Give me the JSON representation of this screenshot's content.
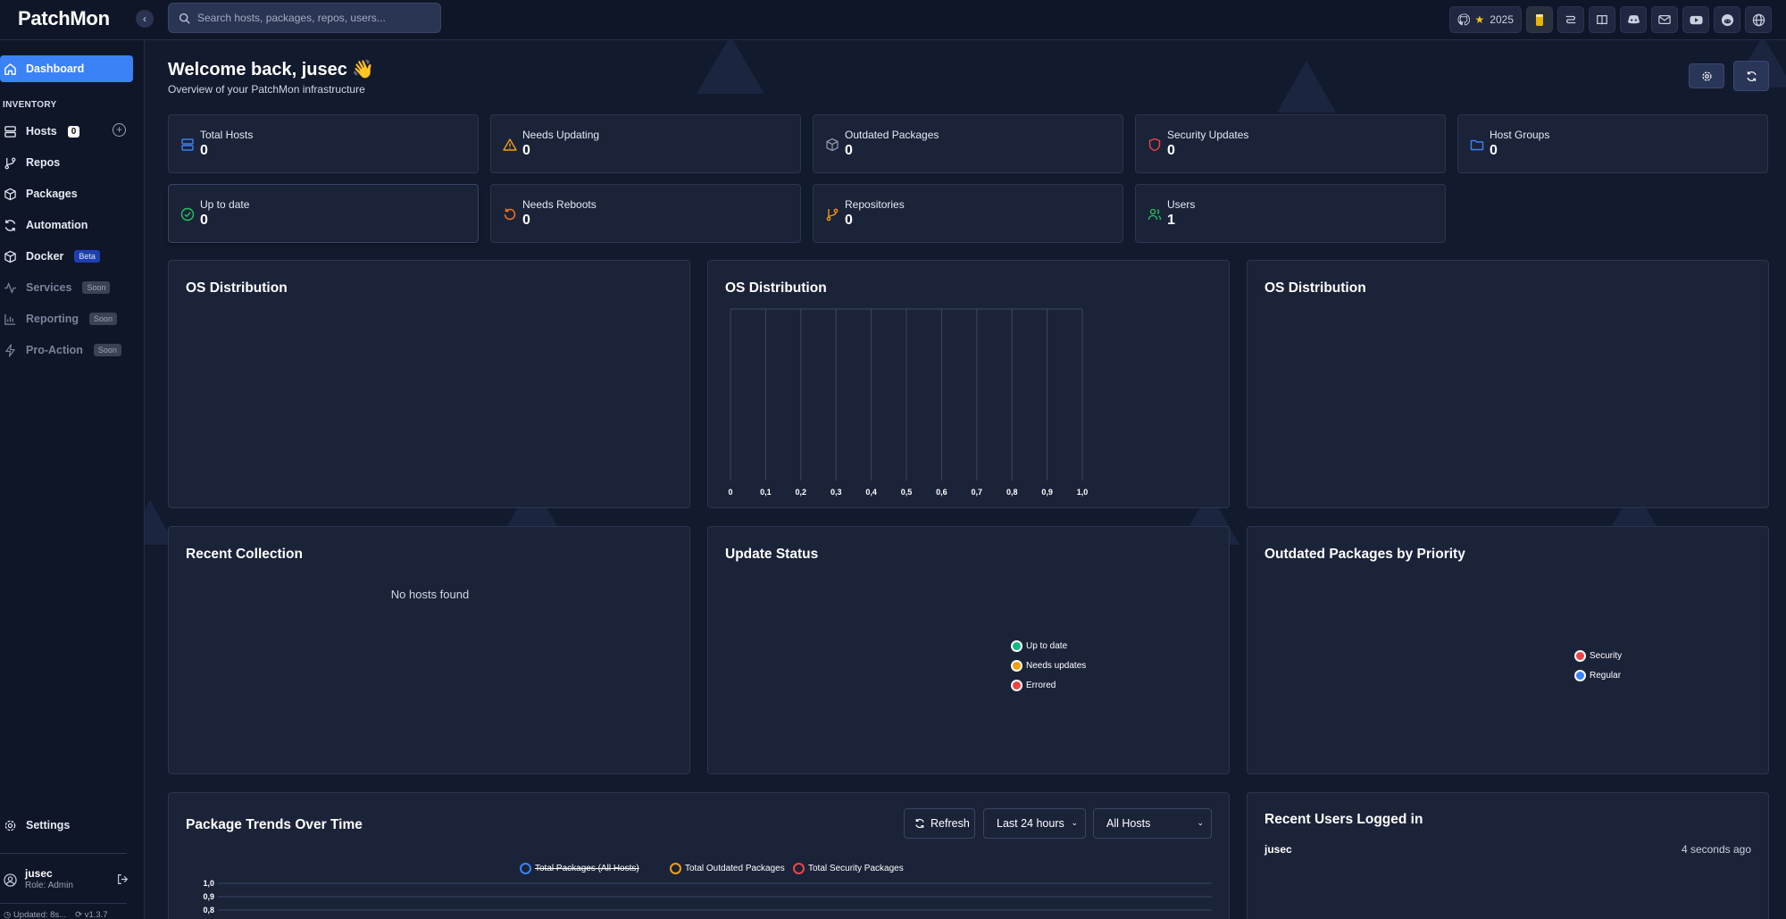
{
  "app": {
    "logo": "PatchMon",
    "search_placeholder": "Search hosts, packages, repos, users...",
    "github_stars": "2025",
    "accent": "#3b82f6"
  },
  "top_icons": [
    "github-icon",
    "beer-icon",
    "roadmap-icon",
    "docs-icon",
    "discord-icon",
    "mail-icon",
    "youtube-icon",
    "reddit-icon",
    "globe-icon"
  ],
  "sidebar": {
    "dashboard": "Dashboard",
    "section": "INVENTORY",
    "hosts": "Hosts",
    "hosts_count": "0",
    "repos": "Repos",
    "packages": "Packages",
    "automation": "Automation",
    "docker": "Docker",
    "docker_badge": "Beta",
    "services": "Services",
    "reporting": "Reporting",
    "pro_action": "Pro-Action",
    "soon": "Soon",
    "settings": "Settings",
    "user_name": "jusec",
    "user_role": "Role: Admin",
    "updated": "Updated: 8s...",
    "version": "v1.3.7"
  },
  "header": {
    "welcome": "Welcome back, jusec",
    "wave": "👋",
    "subtitle": "Overview of your PatchMon infrastructure"
  },
  "stats": [
    {
      "label": "Total Hosts",
      "value": "0",
      "icon": "server-icon",
      "color": "#3b82f6"
    },
    {
      "label": "Needs Updating",
      "value": "0",
      "icon": "warning-icon",
      "color": "#f59e0b"
    },
    {
      "label": "Outdated Packages",
      "value": "0",
      "icon": "package-icon",
      "color": "#8b93a8"
    },
    {
      "label": "Security Updates",
      "value": "0",
      "icon": "shield-icon",
      "color": "#ef4444"
    },
    {
      "label": "Host Groups",
      "value": "0",
      "icon": "folder-icon",
      "color": "#3b82f6"
    },
    {
      "label": "Up to date",
      "value": "0",
      "icon": "check-circle-icon",
      "color": "#22c55e"
    },
    {
      "label": "Needs Reboots",
      "value": "0",
      "icon": "reboot-icon",
      "color": "#f97316"
    },
    {
      "label": "Repositories",
      "value": "0",
      "icon": "git-branch-icon",
      "color": "#f59e0b"
    },
    {
      "label": "Users",
      "value": "1",
      "icon": "users-icon",
      "color": "#22c55e"
    }
  ],
  "panels": {
    "os_dist_1": "OS Distribution",
    "os_dist_2": "OS Distribution",
    "os_dist_3": "OS Distribution",
    "recent_collection": "Recent Collection",
    "no_hosts": "No hosts found",
    "update_status": "Update Status",
    "outdated_priority": "Outdated Packages by Priority",
    "package_trends": "Package Trends Over Time",
    "recent_users": "Recent Users Logged in"
  },
  "update_status_legend": [
    {
      "label": "Up to date",
      "color": "#10b981"
    },
    {
      "label": "Needs updates",
      "color": "#f59e0b"
    },
    {
      "label": "Errored",
      "color": "#ef4444"
    }
  ],
  "priority_legend": [
    {
      "label": "Security",
      "color": "#ef4444"
    },
    {
      "label": "Regular",
      "color": "#3b82f6"
    }
  ],
  "trends": {
    "refresh": "Refresh",
    "range": "Last 24 hours",
    "range_options": [
      "Last 24 hours"
    ],
    "hosts": "All Hosts",
    "hosts_options": [
      "All Hosts"
    ],
    "legend": [
      {
        "label": "Total Packages (All Hosts)",
        "color": "#3b82f6",
        "struck": true
      },
      {
        "label": "Total Outdated Packages",
        "color": "#f59e0b",
        "struck": false
      },
      {
        "label": "Total Security Packages",
        "color": "#ef4444",
        "struck": false
      }
    ]
  },
  "recent_users": [
    {
      "name": "jusec",
      "time": "4 seconds ago"
    }
  ],
  "chart_data": [
    {
      "type": "bar",
      "title": "OS Distribution",
      "categories": [],
      "values": [],
      "xlim": [
        0,
        1.0
      ],
      "xticks": [
        "0",
        "0,1",
        "0,2",
        "0,3",
        "0,4",
        "0,5",
        "0,6",
        "0,7",
        "0,8",
        "0,9",
        "1,0"
      ],
      "grid": true
    },
    {
      "type": "line",
      "title": "Package Trends Over Time",
      "ylim": [
        0.8,
        1.0
      ],
      "yticks": [
        "1,0",
        "0,9",
        "0,8"
      ],
      "series": [
        {
          "name": "Total Packages (All Hosts)",
          "values": []
        },
        {
          "name": "Total Outdated Packages",
          "values": []
        },
        {
          "name": "Total Security Packages",
          "values": []
        }
      ],
      "legend": "top"
    }
  ]
}
